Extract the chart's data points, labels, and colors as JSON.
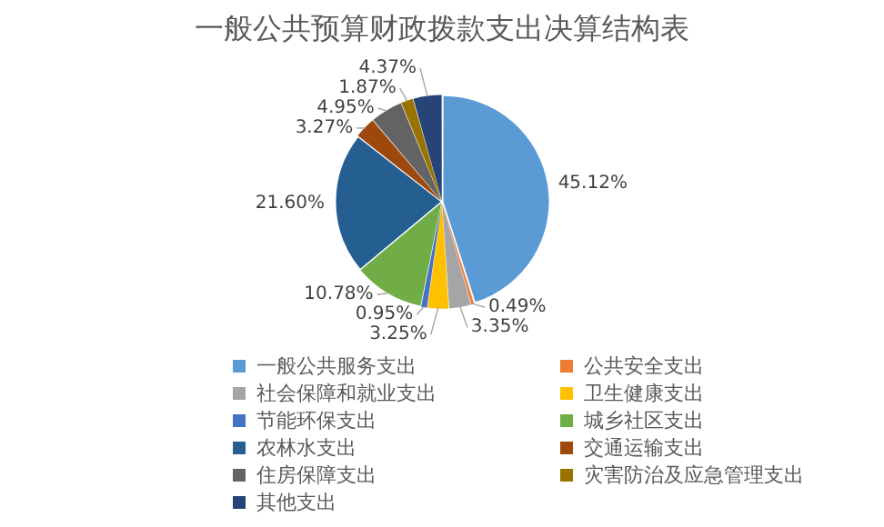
{
  "chart_data": {
    "type": "pie",
    "title": "一般公共预算财政拨款支出决算结构表",
    "categories": [
      "一般公共服务支出",
      "公共安全支出",
      "社会保障和就业支出",
      "卫生健康支出",
      "节能环保支出",
      "城乡社区支出",
      "农林水支出",
      "交通运输支出",
      "住房保障支出",
      "灾害防治及应急管理支出",
      "其他支出"
    ],
    "values": [
      45.12,
      0.49,
      3.35,
      3.25,
      0.95,
      10.78,
      21.6,
      3.27,
      4.95,
      1.87,
      4.37
    ],
    "value_labels": [
      "45.12%",
      "0.49%",
      "3.35%",
      "3.25%",
      "0.95%",
      "10.78%",
      "21.60%",
      "3.27%",
      "4.95%",
      "1.87%",
      "4.37%"
    ],
    "colors": [
      "#5b9bd5",
      "#ed7d31",
      "#a5a5a5",
      "#ffc000",
      "#4472c4",
      "#70ad47",
      "#255e91",
      "#9e480e",
      "#636363",
      "#997300",
      "#264478"
    ],
    "legend": "bottom"
  }
}
